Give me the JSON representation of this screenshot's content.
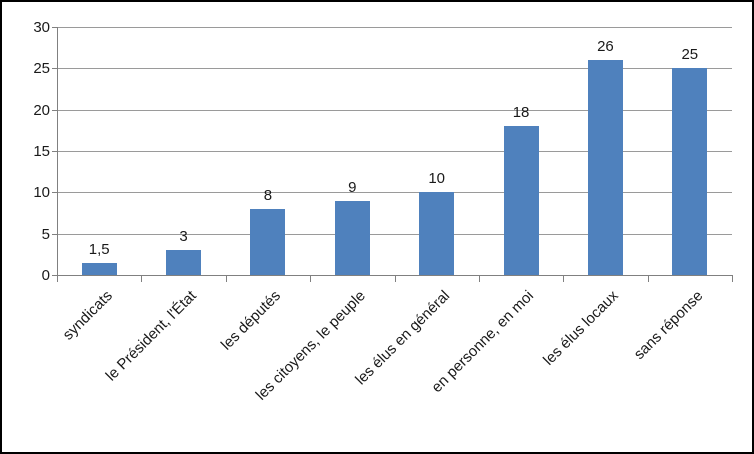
{
  "chart_data": {
    "type": "bar",
    "title": "",
    "xlabel": "",
    "ylabel": "",
    "categories": [
      "syndicats",
      "le Président, l'État",
      "les députés",
      "les citoyens, le peuple",
      "les élus en général",
      "en personne, en moi",
      "les élus locaux",
      "sans réponse"
    ],
    "values": [
      1.5,
      3,
      8,
      9,
      10,
      18,
      26,
      25
    ],
    "value_labels": [
      "1,5",
      "3",
      "8",
      "9",
      "10",
      "18",
      "26",
      "25"
    ],
    "ylim": [
      0,
      30
    ],
    "yticks": [
      0,
      5,
      10,
      15,
      20,
      25,
      30
    ],
    "grid": true,
    "legend": "none",
    "x_label_rotation_deg": 45,
    "colors": {
      "bar": "#4F81BD",
      "gridline": "#9a9a9a",
      "axis": "#808080",
      "text": "#1a1a1a",
      "frame_border": "#000000",
      "background": "#ffffff"
    }
  }
}
